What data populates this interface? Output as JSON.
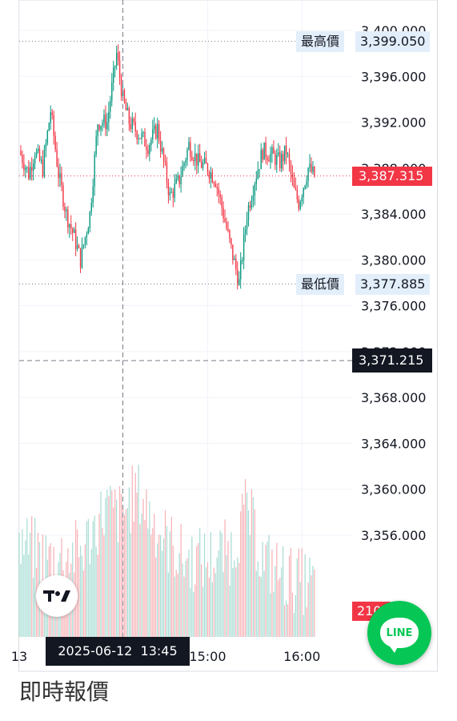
{
  "chart_data": {
    "type": "candlestick",
    "y_axis_ticks": [
      "3,400.000",
      "3,396.000",
      "3,392.000",
      "3,388.000",
      "3,384.000",
      "3,380.000",
      "3,376.000",
      "3,372.000",
      "3,368.000",
      "3,364.000",
      "3,360.000",
      "3,356.000"
    ],
    "y_axis_tick_values": [
      3400,
      3396,
      3392,
      3388,
      3384,
      3380,
      3376,
      3372,
      3368,
      3364,
      3360,
      3356
    ],
    "ylim": [
      3353.6,
      3401.2
    ],
    "x_axis_ticks": [
      "13",
      "15:00",
      "16:00"
    ],
    "x_axis_tick_minutes": [
      780,
      900,
      960
    ],
    "xlim_minutes": [
      780,
      992
    ],
    "session_high": {
      "label": "最高價",
      "value": "3,399.050",
      "price": 3399.05
    },
    "session_low": {
      "label": "最低價",
      "value": "3,377.885",
      "price": 3377.885
    },
    "last_price": {
      "value": "3,387.315",
      "price": 3387.315,
      "color": "#f23645"
    },
    "crosshair": {
      "price_value": "3,371.215",
      "price": 3371.215,
      "time_label": "2025-06-12  13:45",
      "time_minutes": 846
    },
    "volume_last_label": "210",
    "colors": {
      "up": "#089981",
      "down": "#f23645",
      "volume_up": "#a6dcd3",
      "volume_down": "#f7b0b5"
    },
    "series": [
      {
        "name": "",
        "anchors": [
          [
            780,
            3389.5
          ],
          [
            786,
            3387.5
          ],
          [
            790,
            3389.5
          ],
          [
            795,
            3388
          ],
          [
            800,
            3393
          ],
          [
            805,
            3387.5
          ],
          [
            810,
            3384
          ],
          [
            815,
            3382
          ],
          [
            819,
            3380
          ],
          [
            825,
            3384
          ],
          [
            830,
            3392
          ],
          [
            836,
            3392
          ],
          [
            842,
            3398
          ],
          [
            846,
            3394
          ],
          [
            850,
            3392
          ],
          [
            856,
            3391
          ],
          [
            862,
            3390
          ],
          [
            868,
            3391.5
          ],
          [
            876,
            3385.5
          ],
          [
            882,
            3387
          ],
          [
            888,
            3390
          ],
          [
            894,
            3388.5
          ],
          [
            900,
            3388
          ],
          [
            905,
            3387
          ],
          [
            910,
            3384
          ],
          [
            914,
            3381.5
          ],
          [
            920,
            3378
          ],
          [
            925,
            3384
          ],
          [
            930,
            3387
          ],
          [
            935,
            3389.5
          ],
          [
            942,
            3389
          ],
          [
            946,
            3388.5
          ],
          [
            950,
            3389.5
          ],
          [
            955,
            3386
          ],
          [
            958,
            3385
          ],
          [
            961,
            3386.5
          ],
          [
            964,
            3388
          ],
          [
            968,
            3387.3
          ]
        ]
      },
      {
        "name": "volume",
        "anchors": [
          [
            780,
            0.55
          ],
          [
            800,
            0.45
          ],
          [
            820,
            0.5
          ],
          [
            835,
            0.75
          ],
          [
            845,
            0.7
          ],
          [
            855,
            0.85
          ],
          [
            870,
            0.6
          ],
          [
            885,
            0.45
          ],
          [
            900,
            0.45
          ],
          [
            915,
            0.5
          ],
          [
            925,
            0.75
          ],
          [
            935,
            0.45
          ],
          [
            950,
            0.35
          ],
          [
            968,
            0.3
          ]
        ]
      }
    ]
  },
  "page": {
    "section_title": "即時報價"
  }
}
